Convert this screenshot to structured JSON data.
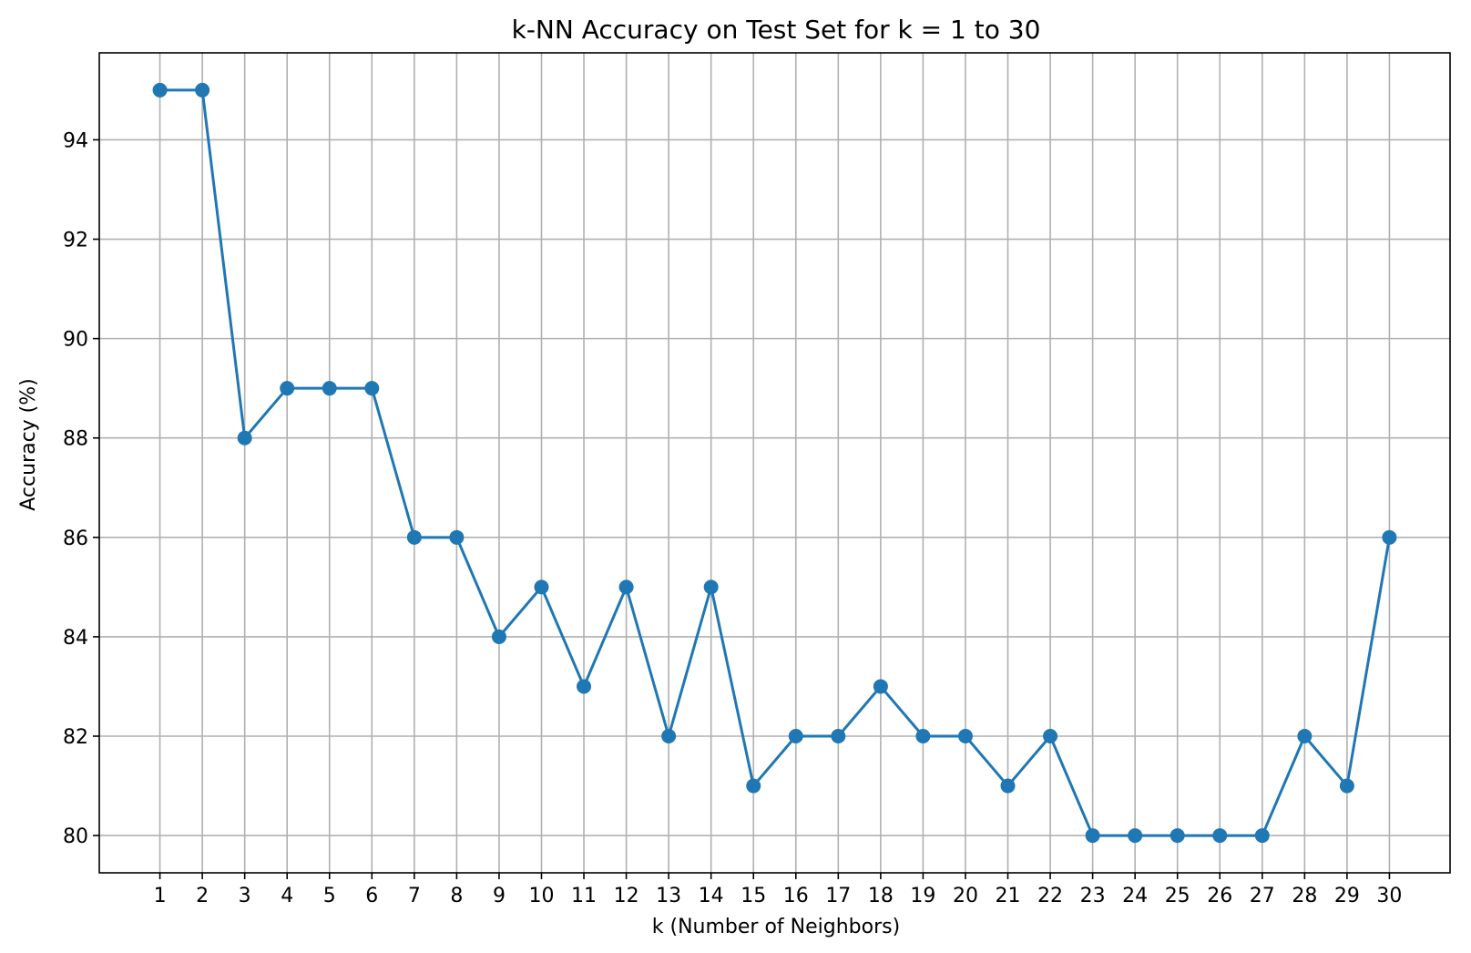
{
  "chart_data": {
    "type": "line",
    "title": "k-NN Accuracy on Test Set for k = 1 to 30",
    "xlabel": "k (Number of Neighbors)",
    "ylabel": "Accuracy (%)",
    "x": [
      1,
      2,
      3,
      4,
      5,
      6,
      7,
      8,
      9,
      10,
      11,
      12,
      13,
      14,
      15,
      16,
      17,
      18,
      19,
      20,
      21,
      22,
      23,
      24,
      25,
      26,
      27,
      28,
      29,
      30
    ],
    "series": [
      {
        "values": [
          95,
          95,
          88,
          89,
          89,
          89,
          86,
          86,
          84,
          85,
          83,
          85,
          82,
          85,
          81,
          82,
          82,
          83,
          82,
          82,
          81,
          82,
          80,
          80,
          80,
          80,
          80,
          82,
          81,
          86
        ],
        "color": "#1f77b4",
        "marker": "circle"
      }
    ],
    "xticks": [
      "1",
      "2",
      "3",
      "4",
      "5",
      "6",
      "7",
      "8",
      "9",
      "10",
      "11",
      "12",
      "13",
      "14",
      "15",
      "16",
      "17",
      "18",
      "19",
      "20",
      "21",
      "22",
      "23",
      "24",
      "25",
      "26",
      "27",
      "28",
      "29",
      "30"
    ],
    "yticks": [
      "80",
      "82",
      "84",
      "86",
      "88",
      "90",
      "92",
      "94"
    ],
    "xlim": [
      -0.43,
      31.43
    ],
    "ylim": [
      79.25,
      95.75
    ],
    "grid": true
  }
}
